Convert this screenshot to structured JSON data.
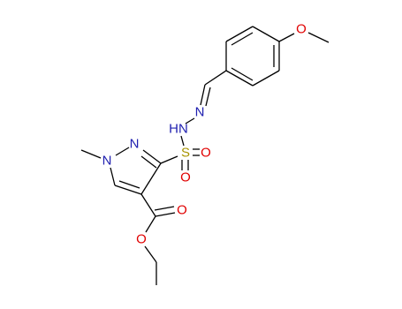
{
  "atoms": [
    "O",
    "N",
    "HN",
    "N",
    "N",
    "S",
    "O",
    "O",
    "O",
    "O"
  ]
}
